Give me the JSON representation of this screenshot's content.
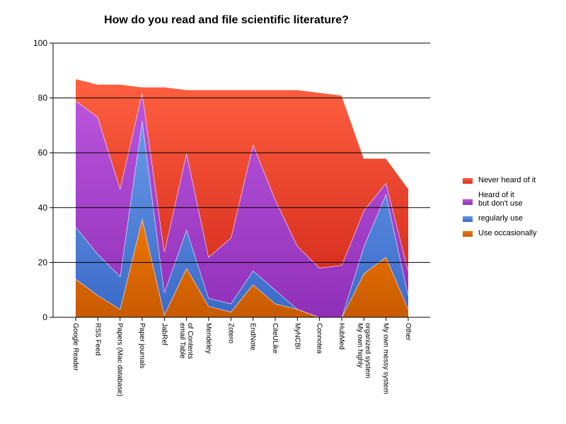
{
  "chart_data": {
    "type": "area",
    "stacked": true,
    "title": "How do you read and file scientific literature?",
    "xlabel": "",
    "ylabel": "",
    "ylim": [
      0,
      100
    ],
    "yticks": [
      "0",
      "20",
      "40",
      "60",
      "80",
      "100"
    ],
    "grid": "horizontal",
    "legend_position": "right",
    "categories": [
      [
        "Google Reader"
      ],
      [
        "RSS Feed"
      ],
      [
        "Papers (Mac database)"
      ],
      [
        "Paper journals"
      ],
      [
        "JabRef"
      ],
      [
        "email Table",
        "of Contents"
      ],
      [
        "Mendeley"
      ],
      [
        "Zotero"
      ],
      [
        "EndNote"
      ],
      [
        "CiteULike"
      ],
      [
        "MyNCBI"
      ],
      [
        "Connotea"
      ],
      [
        "HubMed"
      ],
      [
        "My own highly",
        "organized system"
      ],
      [
        "My own messy system"
      ],
      [
        "Other"
      ]
    ],
    "series": [
      {
        "name": "Use occasionally",
        "color": "#F07800",
        "colorDark": "#C85A00",
        "values": [
          14,
          8,
          3,
          36,
          1,
          18,
          4,
          2,
          12,
          5,
          3,
          0,
          0,
          16,
          22,
          3
        ]
      },
      {
        "name": "regularly use",
        "color": "#6A9AE8",
        "colorDark": "#3A6AC8",
        "values": [
          19,
          15,
          12,
          36,
          8,
          14,
          3,
          3,
          5,
          5,
          0,
          0,
          0,
          10,
          23,
          5
        ]
      },
      {
        "name": "Heard of it\nbut don't use",
        "color": "#BB55DD",
        "colorDark": "#9030B8",
        "values": [
          46,
          50,
          32,
          10,
          15,
          28,
          15,
          24,
          46,
          33,
          23,
          18,
          19,
          13,
          4,
          9
        ]
      },
      {
        "name": "Never heard of it",
        "color": "#FF6040",
        "colorDark": "#D83020",
        "values": [
          8,
          12,
          38,
          2,
          60,
          23,
          61,
          54,
          20,
          40,
          57,
          64,
          62,
          19,
          9,
          30
        ]
      }
    ]
  }
}
